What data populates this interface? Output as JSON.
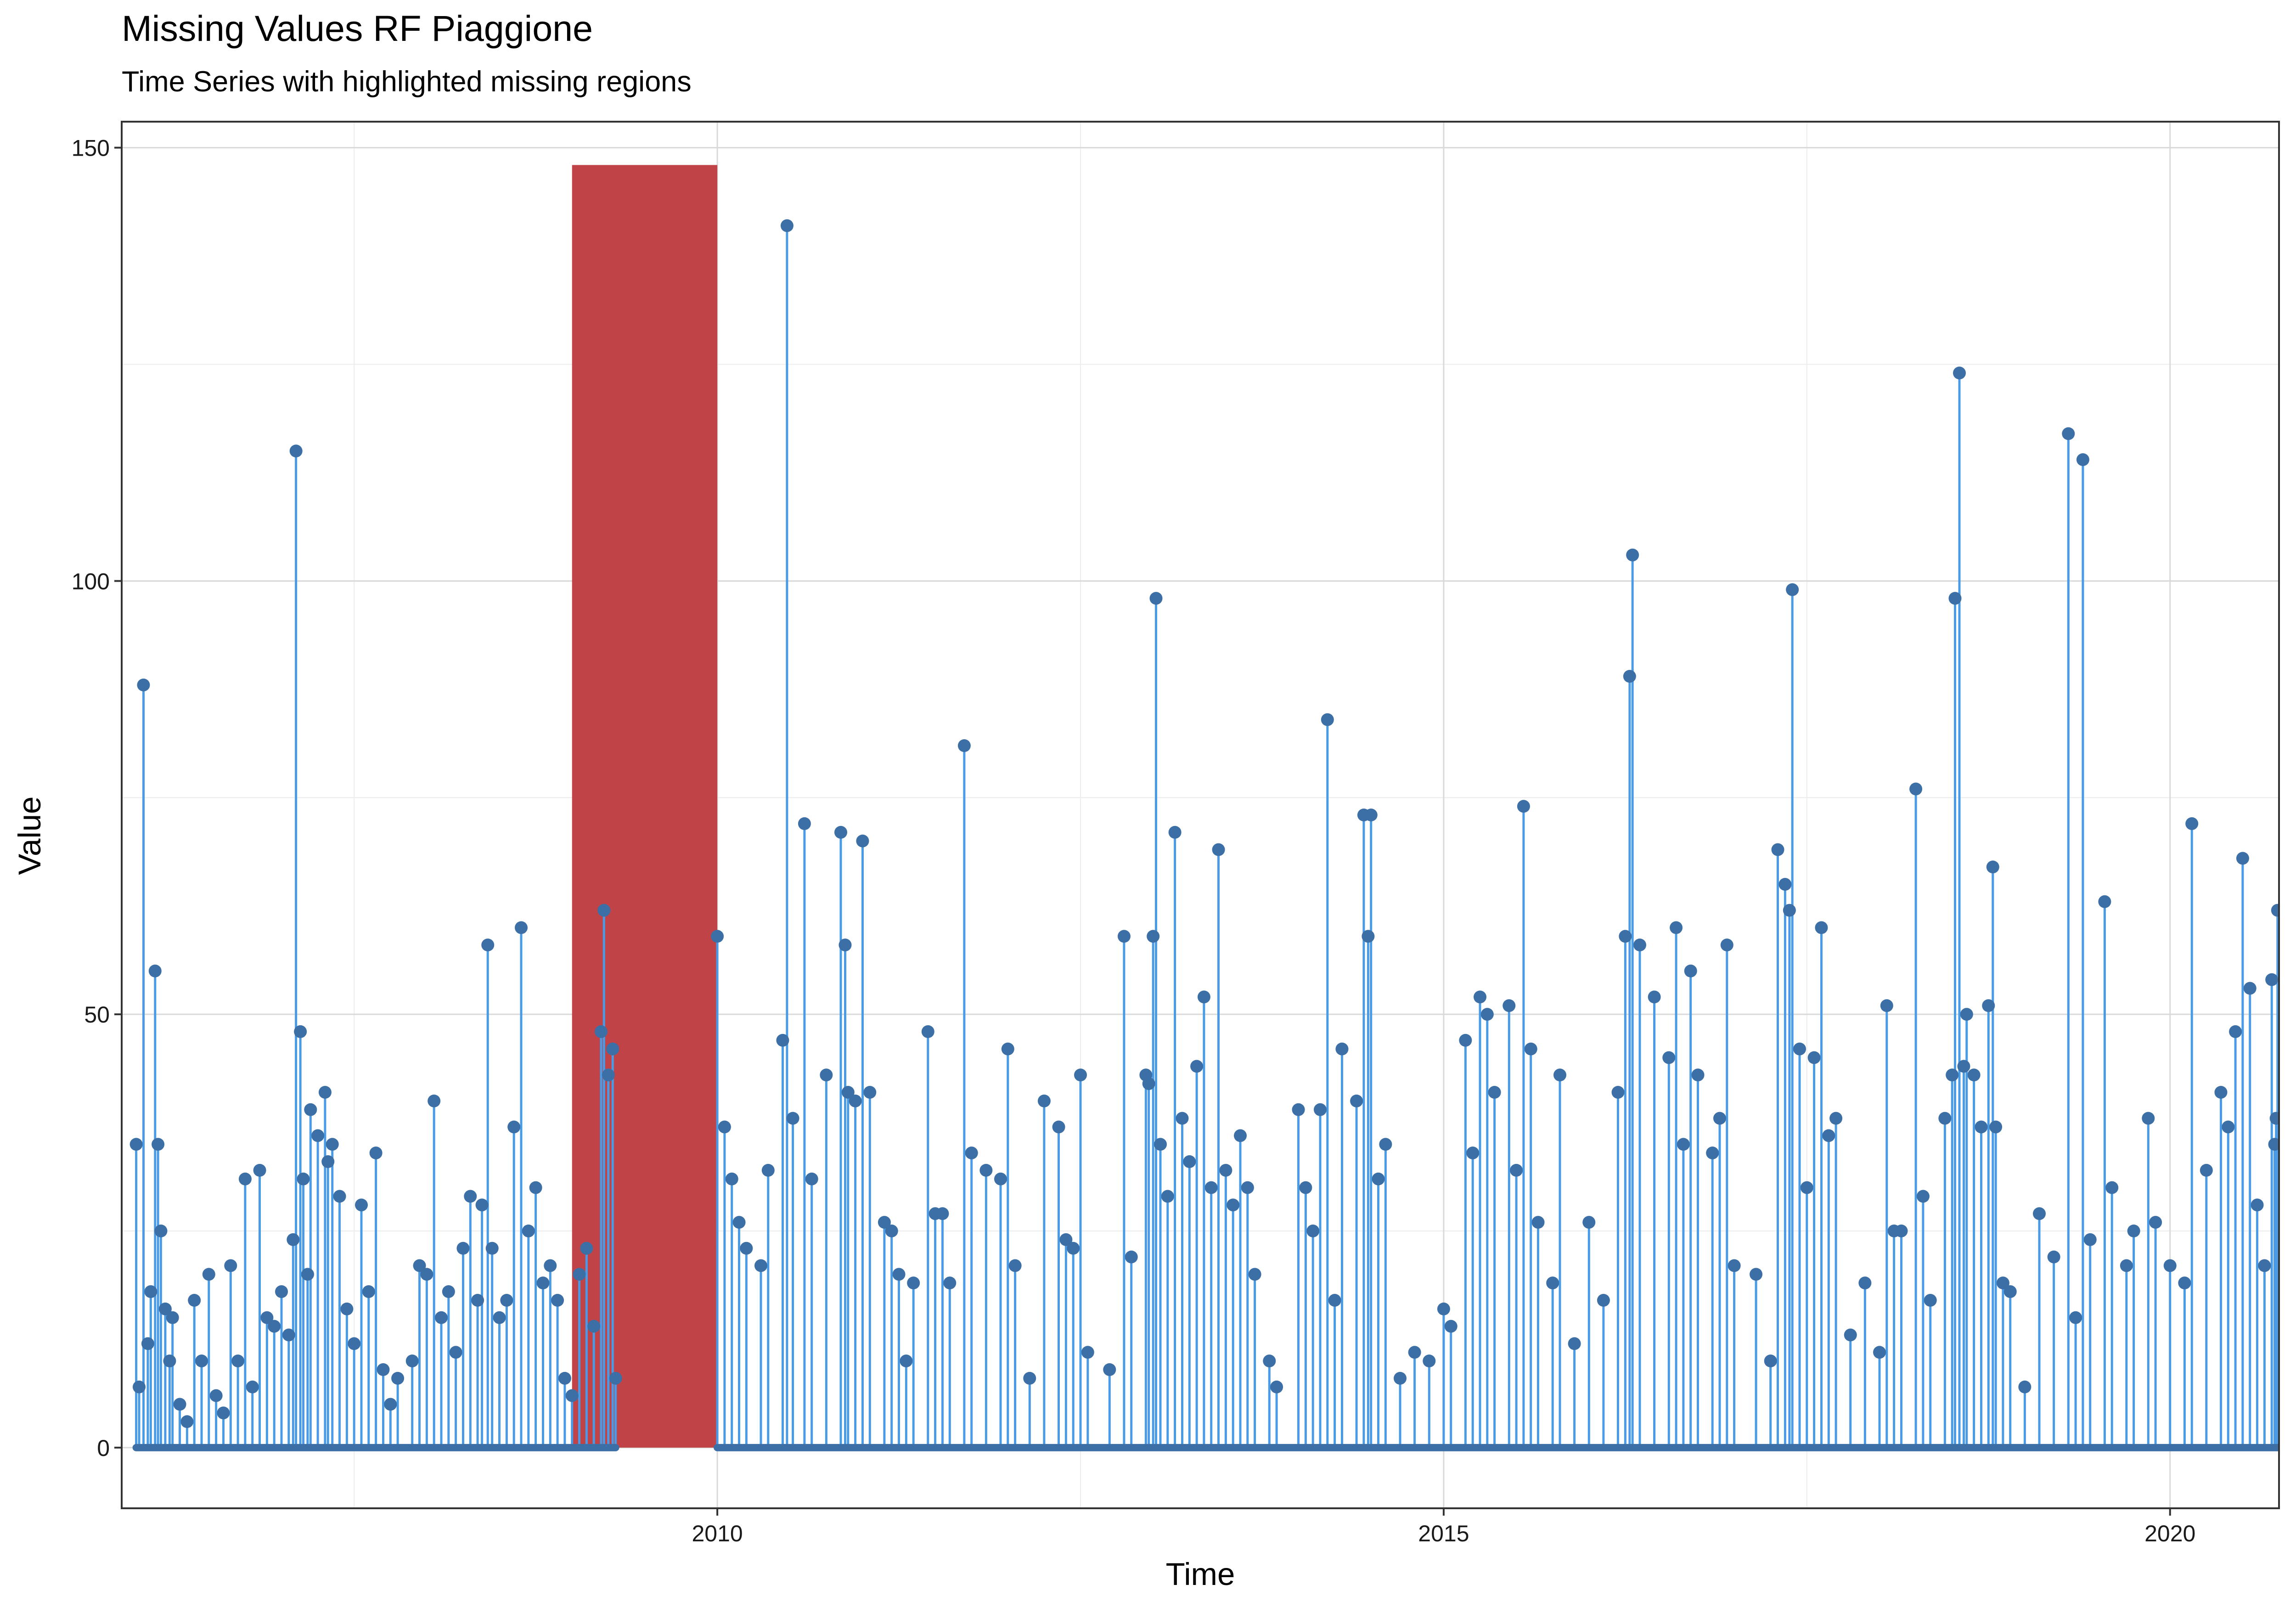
{
  "chart_data": {
    "type": "line",
    "title": "Missing Values RF Piaggione",
    "subtitle": "Time Series with highlighted missing regions",
    "xlabel": "Time",
    "ylabel": "Value",
    "xlim": [
      2005.9,
      2020.75
    ],
    "ylim": [
      -7,
      153
    ],
    "x_ticks": [
      2010,
      2015,
      2020
    ],
    "y_ticks": [
      0,
      50,
      100,
      150
    ],
    "grid": true,
    "colors": {
      "line": "#4a9be6",
      "point": "#3b6fa6",
      "missing": "#c04447"
    },
    "missing_regions": [
      {
        "start": 2009.0,
        "end": 2010.0,
        "height": 148
      }
    ],
    "series": [
      {
        "values": [
          [
            2006.0,
            35
          ],
          [
            2006.02,
            7
          ],
          [
            2006.05,
            88
          ],
          [
            2006.08,
            12
          ],
          [
            2006.1,
            18
          ],
          [
            2006.13,
            55
          ],
          [
            2006.15,
            35
          ],
          [
            2006.17,
            25
          ],
          [
            2006.2,
            16
          ],
          [
            2006.23,
            10
          ],
          [
            2006.25,
            15
          ],
          [
            2006.3,
            5
          ],
          [
            2006.35,
            3
          ],
          [
            2006.4,
            17
          ],
          [
            2006.45,
            10
          ],
          [
            2006.5,
            20
          ],
          [
            2006.55,
            6
          ],
          [
            2006.6,
            4
          ],
          [
            2006.65,
            21
          ],
          [
            2006.7,
            10
          ],
          [
            2006.75,
            31
          ],
          [
            2006.8,
            7
          ],
          [
            2006.85,
            32
          ],
          [
            2006.9,
            15
          ],
          [
            2006.95,
            14
          ],
          [
            2007.0,
            18
          ],
          [
            2007.05,
            13
          ],
          [
            2007.08,
            24
          ],
          [
            2007.1,
            115
          ],
          [
            2007.13,
            48
          ],
          [
            2007.15,
            31
          ],
          [
            2007.18,
            20
          ],
          [
            2007.2,
            39
          ],
          [
            2007.25,
            36
          ],
          [
            2007.3,
            41
          ],
          [
            2007.32,
            33
          ],
          [
            2007.35,
            35
          ],
          [
            2007.4,
            29
          ],
          [
            2007.45,
            16
          ],
          [
            2007.5,
            12
          ],
          [
            2007.55,
            28
          ],
          [
            2007.6,
            18
          ],
          [
            2007.65,
            34
          ],
          [
            2007.7,
            9
          ],
          [
            2007.75,
            5
          ],
          [
            2007.8,
            8
          ],
          [
            2007.9,
            10
          ],
          [
            2007.95,
            21
          ],
          [
            2008.0,
            20
          ],
          [
            2008.05,
            40
          ],
          [
            2008.1,
            15
          ],
          [
            2008.15,
            18
          ],
          [
            2008.2,
            11
          ],
          [
            2008.25,
            23
          ],
          [
            2008.3,
            29
          ],
          [
            2008.35,
            17
          ],
          [
            2008.38,
            28
          ],
          [
            2008.42,
            58
          ],
          [
            2008.45,
            23
          ],
          [
            2008.5,
            15
          ],
          [
            2008.55,
            17
          ],
          [
            2008.6,
            37
          ],
          [
            2008.65,
            60
          ],
          [
            2008.7,
            25
          ],
          [
            2008.75,
            30
          ],
          [
            2008.8,
            19
          ],
          [
            2008.85,
            21
          ],
          [
            2008.9,
            17
          ],
          [
            2008.95,
            8
          ],
          [
            2009.0,
            6
          ],
          [
            2009.05,
            20
          ],
          [
            2009.1,
            23
          ],
          [
            2009.15,
            14
          ],
          [
            2009.2,
            48
          ],
          [
            2009.22,
            62
          ],
          [
            2009.25,
            43
          ],
          [
            2009.28,
            46
          ],
          [
            2009.3,
            8
          ],
          [
            2010.0,
            59
          ],
          [
            2010.05,
            37
          ],
          [
            2010.1,
            31
          ],
          [
            2010.15,
            26
          ],
          [
            2010.2,
            23
          ],
          [
            2010.3,
            21
          ],
          [
            2010.35,
            32
          ],
          [
            2010.45,
            47
          ],
          [
            2010.48,
            141
          ],
          [
            2010.52,
            38
          ],
          [
            2010.6,
            72
          ],
          [
            2010.65,
            31
          ],
          [
            2010.75,
            43
          ],
          [
            2010.85,
            71
          ],
          [
            2010.88,
            58
          ],
          [
            2010.9,
            41
          ],
          [
            2010.95,
            40
          ],
          [
            2011.0,
            70
          ],
          [
            2011.05,
            41
          ],
          [
            2011.15,
            26
          ],
          [
            2011.2,
            25
          ],
          [
            2011.25,
            20
          ],
          [
            2011.3,
            10
          ],
          [
            2011.35,
            19
          ],
          [
            2011.45,
            48
          ],
          [
            2011.5,
            27
          ],
          [
            2011.55,
            27
          ],
          [
            2011.6,
            19
          ],
          [
            2011.7,
            81
          ],
          [
            2011.75,
            34
          ],
          [
            2011.85,
            32
          ],
          [
            2011.95,
            31
          ],
          [
            2012.0,
            46
          ],
          [
            2012.05,
            21
          ],
          [
            2012.15,
            8
          ],
          [
            2012.25,
            40
          ],
          [
            2012.35,
            37
          ],
          [
            2012.4,
            24
          ],
          [
            2012.45,
            23
          ],
          [
            2012.5,
            43
          ],
          [
            2012.55,
            11
          ],
          [
            2012.7,
            9
          ],
          [
            2012.8,
            59
          ],
          [
            2012.85,
            22
          ],
          [
            2012.95,
            43
          ],
          [
            2012.97,
            42
          ],
          [
            2013.0,
            59
          ],
          [
            2013.02,
            98
          ],
          [
            2013.05,
            35
          ],
          [
            2013.1,
            29
          ],
          [
            2013.15,
            71
          ],
          [
            2013.2,
            38
          ],
          [
            2013.25,
            33
          ],
          [
            2013.3,
            44
          ],
          [
            2013.35,
            52
          ],
          [
            2013.4,
            30
          ],
          [
            2013.45,
            69
          ],
          [
            2013.5,
            32
          ],
          [
            2013.55,
            28
          ],
          [
            2013.6,
            36
          ],
          [
            2013.65,
            30
          ],
          [
            2013.7,
            20
          ],
          [
            2013.8,
            10
          ],
          [
            2013.85,
            7
          ],
          [
            2014.0,
            39
          ],
          [
            2014.05,
            30
          ],
          [
            2014.1,
            25
          ],
          [
            2014.15,
            39
          ],
          [
            2014.2,
            84
          ],
          [
            2014.25,
            17
          ],
          [
            2014.3,
            46
          ],
          [
            2014.4,
            40
          ],
          [
            2014.45,
            73
          ],
          [
            2014.48,
            59
          ],
          [
            2014.5,
            73
          ],
          [
            2014.55,
            31
          ],
          [
            2014.6,
            35
          ],
          [
            2014.7,
            8
          ],
          [
            2014.8,
            11
          ],
          [
            2014.9,
            10
          ],
          [
            2015.0,
            16
          ],
          [
            2015.05,
            14
          ],
          [
            2015.15,
            47
          ],
          [
            2015.2,
            34
          ],
          [
            2015.25,
            52
          ],
          [
            2015.3,
            50
          ],
          [
            2015.35,
            41
          ],
          [
            2015.45,
            51
          ],
          [
            2015.5,
            32
          ],
          [
            2015.55,
            74
          ],
          [
            2015.6,
            46
          ],
          [
            2015.65,
            26
          ],
          [
            2015.75,
            19
          ],
          [
            2015.8,
            43
          ],
          [
            2015.9,
            12
          ],
          [
            2016.0,
            26
          ],
          [
            2016.1,
            17
          ],
          [
            2016.2,
            41
          ],
          [
            2016.25,
            59
          ],
          [
            2016.28,
            89
          ],
          [
            2016.3,
            103
          ],
          [
            2016.35,
            58
          ],
          [
            2016.45,
            52
          ],
          [
            2016.55,
            45
          ],
          [
            2016.6,
            60
          ],
          [
            2016.65,
            35
          ],
          [
            2016.7,
            55
          ],
          [
            2016.75,
            43
          ],
          [
            2016.85,
            34
          ],
          [
            2016.9,
            38
          ],
          [
            2016.95,
            58
          ],
          [
            2017.0,
            21
          ],
          [
            2017.15,
            20
          ],
          [
            2017.25,
            10
          ],
          [
            2017.3,
            69
          ],
          [
            2017.35,
            65
          ],
          [
            2017.38,
            62
          ],
          [
            2017.4,
            99
          ],
          [
            2017.45,
            46
          ],
          [
            2017.5,
            30
          ],
          [
            2017.55,
            45
          ],
          [
            2017.6,
            60
          ],
          [
            2017.65,
            36
          ],
          [
            2017.7,
            38
          ],
          [
            2017.8,
            13
          ],
          [
            2017.9,
            19
          ],
          [
            2018.0,
            11
          ],
          [
            2018.05,
            51
          ],
          [
            2018.1,
            25
          ],
          [
            2018.15,
            25
          ],
          [
            2018.25,
            76
          ],
          [
            2018.3,
            29
          ],
          [
            2018.35,
            17
          ],
          [
            2018.45,
            38
          ],
          [
            2018.5,
            43
          ],
          [
            2018.52,
            98
          ],
          [
            2018.55,
            124
          ],
          [
            2018.58,
            44
          ],
          [
            2018.6,
            50
          ],
          [
            2018.65,
            43
          ],
          [
            2018.7,
            37
          ],
          [
            2018.75,
            51
          ],
          [
            2018.78,
            67
          ],
          [
            2018.8,
            37
          ],
          [
            2018.85,
            19
          ],
          [
            2018.9,
            18
          ],
          [
            2019.0,
            7
          ],
          [
            2019.1,
            27
          ],
          [
            2019.2,
            22
          ],
          [
            2019.3,
            117
          ],
          [
            2019.35,
            15
          ],
          [
            2019.4,
            114
          ],
          [
            2019.45,
            24
          ],
          [
            2019.55,
            63
          ],
          [
            2019.6,
            30
          ],
          [
            2019.7,
            21
          ],
          [
            2019.75,
            25
          ],
          [
            2019.85,
            38
          ],
          [
            2019.9,
            26
          ],
          [
            2020.0,
            21
          ],
          [
            2020.1,
            19
          ],
          [
            2020.15,
            72
          ],
          [
            2020.25,
            32
          ],
          [
            2020.35,
            41
          ],
          [
            2020.4,
            37
          ],
          [
            2020.45,
            48
          ],
          [
            2020.5,
            68
          ],
          [
            2020.55,
            53
          ],
          [
            2020.6,
            28
          ],
          [
            2020.65,
            21
          ],
          [
            2020.7,
            54
          ],
          [
            2020.72,
            35
          ],
          [
            2020.73,
            38
          ],
          [
            2020.74,
            62
          ]
        ]
      }
    ]
  }
}
